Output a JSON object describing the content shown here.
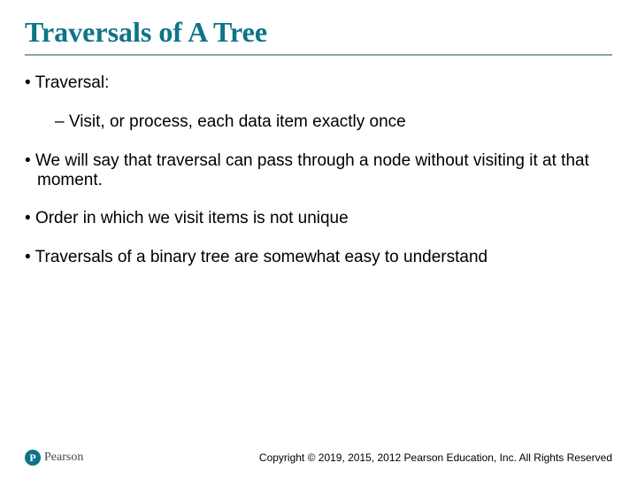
{
  "title": "Traversals of A Tree",
  "bullets": {
    "b1": "Traversal:",
    "b1_sub": "Visit, or process, each data item exactly once",
    "b2": "We will say that  traversal can pass through a node without visiting it at that moment.",
    "b3": "Order in which we visit items is not unique",
    "b4": "Traversals of a binary tree are somewhat easy to understand"
  },
  "footer": {
    "logo_letter": "P",
    "logo_text": "Pearson",
    "copyright": "Copyright © 2019, 2015, 2012 Pearson Education, Inc. All Rights Reserved"
  },
  "colors": {
    "title_color": "#0d7488",
    "divider_color": "#8aa6a9",
    "text_color": "#000000",
    "logo_bg": "#0d7488",
    "background": "#ffffff"
  },
  "typography": {
    "title_font": "Times New Roman",
    "title_size_pt": 24,
    "title_weight": "bold",
    "body_font": "Arial",
    "body_size_pt": 14,
    "copyright_size_pt": 9
  }
}
